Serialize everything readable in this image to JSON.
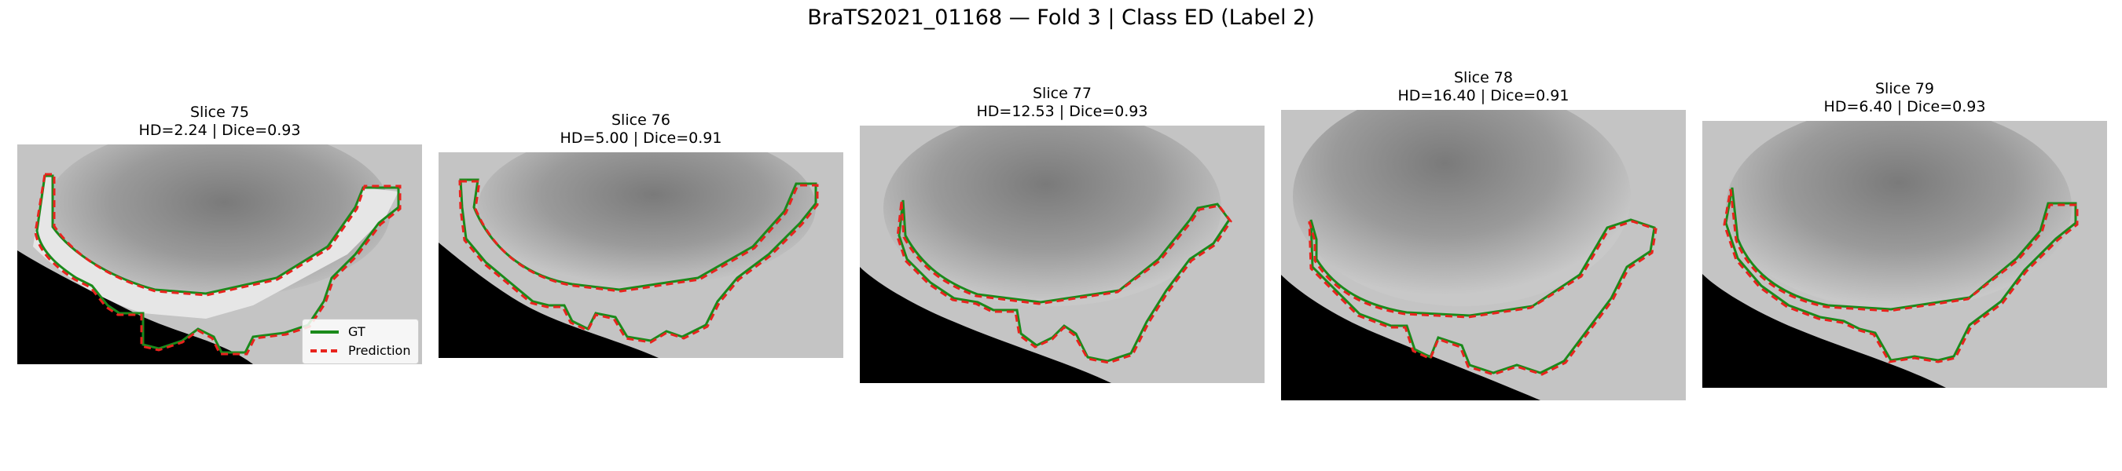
{
  "title": "BraTS2021_01168 — Fold 3 | Class ED (Label 2)",
  "panels": [
    {
      "slice": "Slice 75",
      "metrics": "HD=2.24 | Dice=0.93"
    },
    {
      "slice": "Slice 76",
      "metrics": "HD=5.00 | Dice=0.91"
    },
    {
      "slice": "Slice 77",
      "metrics": "HD=12.53 | Dice=0.93"
    },
    {
      "slice": "Slice 78",
      "metrics": "HD=16.40 | Dice=0.91"
    },
    {
      "slice": "Slice 79",
      "metrics": "HD=6.40 | Dice=0.93"
    }
  ],
  "legend": {
    "gt_label": "GT",
    "pred_label": "Prediction",
    "gt_color": "#1a8a1a",
    "pred_color": "#e8231d"
  }
}
